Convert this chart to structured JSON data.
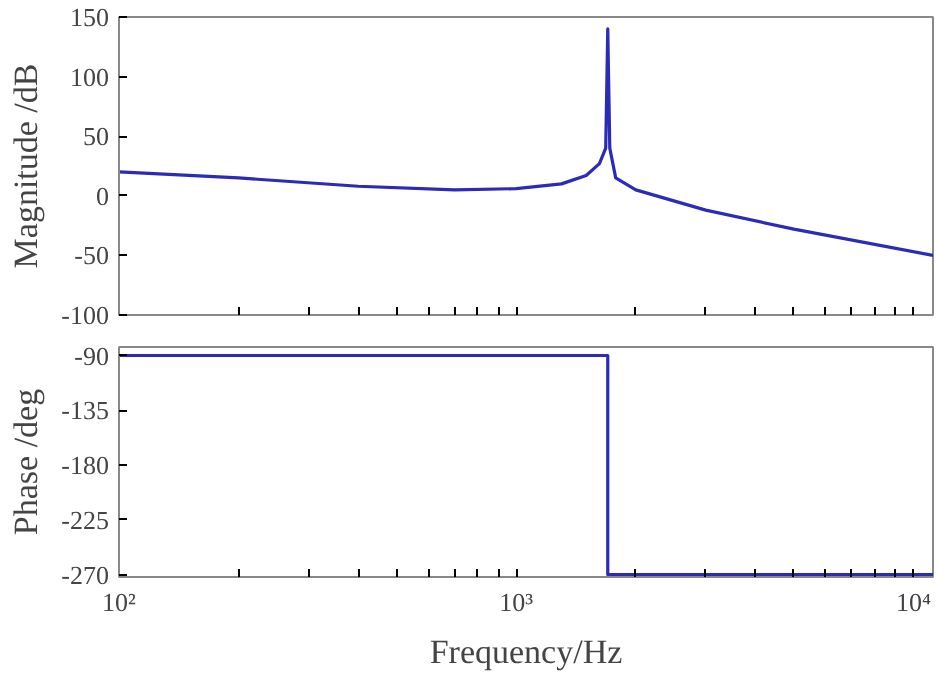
{
  "chart_data": [
    {
      "type": "line",
      "ylabel": "Magnitude /dB",
      "log": "x",
      "grid": false,
      "tick_labels": "y",
      "xlim": [
        100,
        11200
      ],
      "xticks": [
        {
          "value": 100,
          "label": null
        },
        {
          "value": 200,
          "label": null
        },
        {
          "value": 300,
          "label": null
        },
        {
          "value": 400,
          "label": null
        },
        {
          "value": 500,
          "label": null
        },
        {
          "value": 600,
          "label": null
        },
        {
          "value": 700,
          "label": null
        },
        {
          "value": 800,
          "label": null
        },
        {
          "value": 900,
          "label": null
        },
        {
          "value": 1000,
          "label": null
        },
        {
          "value": 2000,
          "label": null
        },
        {
          "value": 3000,
          "label": null
        },
        {
          "value": 4000,
          "label": null
        },
        {
          "value": 5000,
          "label": null
        },
        {
          "value": 6000,
          "label": null
        },
        {
          "value": 7000,
          "label": null
        },
        {
          "value": 8000,
          "label": null
        },
        {
          "value": 9000,
          "label": null
        },
        {
          "value": 10000,
          "label": null
        }
      ],
      "ylim": [
        -100,
        150
      ],
      "yticks": [
        -100,
        -50,
        0,
        50,
        100,
        150
      ],
      "series": [
        {
          "color": "#2b2bb8",
          "x": [
            100,
            200,
            400,
            700,
            1000,
            1300,
            1500,
            1620,
            1680,
            1700,
            1720,
            1780,
            2000,
            3000,
            5000,
            11200
          ],
          "values": [
            20,
            15,
            8,
            5,
            6,
            10,
            17,
            27,
            40,
            140,
            40,
            15,
            5,
            -12,
            -28,
            -50
          ]
        }
      ]
    },
    {
      "type": "line",
      "ylabel": "Phase /deg",
      "xlabel": "Frequency/Hz",
      "log": "x",
      "grid": false,
      "xlim": [
        100,
        11200
      ],
      "xticks": [
        {
          "value": 100,
          "label": "10²"
        },
        {
          "value": 200,
          "label": null
        },
        {
          "value": 300,
          "label": null
        },
        {
          "value": 400,
          "label": null
        },
        {
          "value": 500,
          "label": null
        },
        {
          "value": 600,
          "label": null
        },
        {
          "value": 700,
          "label": null
        },
        {
          "value": 800,
          "label": null
        },
        {
          "value": 900,
          "label": null
        },
        {
          "value": 1000,
          "label": "10³"
        },
        {
          "value": 2000,
          "label": null
        },
        {
          "value": 3000,
          "label": null
        },
        {
          "value": 4000,
          "label": null
        },
        {
          "value": 5000,
          "label": null
        },
        {
          "value": 6000,
          "label": null
        },
        {
          "value": 7000,
          "label": null
        },
        {
          "value": 8000,
          "label": null
        },
        {
          "value": 9000,
          "label": null
        },
        {
          "value": 10000,
          "label": "10⁴"
        }
      ],
      "ylim": [
        -272,
        -83
      ],
      "yticks": [
        -270,
        -225,
        -180,
        -135,
        -90
      ],
      "series": [
        {
          "color": "#2b2bb8",
          "x": [
            100,
            1700,
            1700,
            11200
          ],
          "values": [
            -90,
            -90,
            -270,
            -270
          ]
        }
      ]
    }
  ]
}
